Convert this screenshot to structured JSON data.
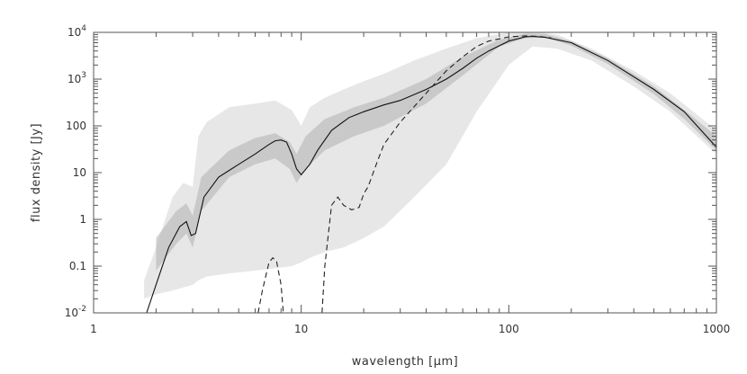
{
  "chart_data": {
    "type": "line",
    "xlabel": "wavelength [μm]",
    "ylabel": "flux density [Jy]",
    "x_scale": "log",
    "y_scale": "log",
    "xlim": [
      1,
      1000
    ],
    "ylim": [
      0.01,
      10000
    ],
    "x_ticks": [
      {
        "value": 1,
        "label": "1"
      },
      {
        "value": 10,
        "label": "10"
      },
      {
        "value": 100,
        "label": "100"
      },
      {
        "value": 1000,
        "label": "1000"
      }
    ],
    "y_ticks": [
      {
        "value": 0.01,
        "base": "10",
        "exp": "-2"
      },
      {
        "value": 0.1,
        "label": "0.1"
      },
      {
        "value": 1,
        "label": "1"
      },
      {
        "value": 10,
        "label": "10"
      },
      {
        "value": 100,
        "label": "100"
      },
      {
        "value": 1000,
        "base": "10",
        "exp": "3"
      },
      {
        "value": 10000,
        "base": "10",
        "exp": "4"
      }
    ],
    "grid": false,
    "colors": {
      "band_outer": "#d4d4d4",
      "band_inner": "#b0b0b0",
      "solid_line": "#111111",
      "dashed_line": "#222222",
      "axes": "#555555"
    },
    "band_outer": {
      "x": [
        1.75,
        2.0,
        2.4,
        2.7,
        3.0,
        3.2,
        3.5,
        4.5,
        6.0,
        7.5,
        9.0,
        10.0,
        11.0,
        13.0,
        16.0,
        20.0,
        25.0,
        35.0,
        50.0,
        70.0,
        100.0,
        130.0,
        170.0,
        250.0,
        400.0,
        600.0,
        1000.0
      ],
      "upper": [
        0.05,
        0.25,
        3.0,
        6.0,
        5.0,
        60.0,
        120.0,
        250.0,
        300.0,
        350.0,
        220.0,
        100.0,
        250.0,
        400.0,
        600.0,
        900.0,
        1300.0,
        2500.0,
        4500.0,
        7500.0,
        10000.0,
        10500.0,
        9000.0,
        4500.0,
        1500.0,
        500.0,
        80.0
      ],
      "lower": [
        0.02,
        0.025,
        0.03,
        0.035,
        0.04,
        0.05,
        0.06,
        0.07,
        0.08,
        0.09,
        0.1,
        0.12,
        0.15,
        0.2,
        0.25,
        0.4,
        0.7,
        3.0,
        15.0,
        200.0,
        2000.0,
        5000.0,
        4500.0,
        2500.0,
        700.0,
        200.0,
        25.0
      ]
    },
    "band_inner": {
      "x": [
        2.0,
        2.5,
        2.8,
        3.0,
        3.3,
        4.5,
        6.0,
        7.5,
        8.8,
        9.5,
        10.5,
        13.0,
        18.0,
        25.0,
        40.0,
        60.0,
        90.0,
        120.0,
        150.0,
        200.0,
        300.0,
        500.0,
        700.0,
        1000.0
      ],
      "upper": [
        0.4,
        1.5,
        2.2,
        1.2,
        8.0,
        30.0,
        55.0,
        70.0,
        45.0,
        25.0,
        60.0,
        140.0,
        250.0,
        400.0,
        1000.0,
        3000.0,
        7000.0,
        9500.0,
        9200.0,
        6500.0,
        2800.0,
        700.0,
        220.0,
        60.0
      ],
      "lower": [
        0.08,
        0.3,
        0.5,
        0.25,
        1.5,
        8.0,
        15.0,
        20.0,
        12.0,
        6.0,
        12.0,
        30.0,
        60.0,
        100.0,
        300.0,
        1200.0,
        5000.0,
        7500.0,
        7800.0,
        5200.0,
        2100.0,
        480.0,
        140.0,
        30.0
      ]
    },
    "series": [
      {
        "style": "solid",
        "x": [
          1.8,
          2.0,
          2.3,
          2.6,
          2.8,
          2.95,
          3.1,
          3.4,
          4.0,
          5.0,
          6.0,
          7.0,
          7.5,
          8.0,
          8.5,
          9.0,
          9.5,
          10.0,
          11.0,
          12.0,
          14.0,
          17.0,
          20.0,
          25.0,
          30.0,
          40.0,
          50.0,
          60.0,
          70.0,
          80.0,
          100.0,
          120.0,
          130.0,
          150.0,
          200.0,
          300.0,
          500.0,
          700.0,
          1000.0
        ],
        "y": [
          0.01,
          0.04,
          0.25,
          0.7,
          0.9,
          0.45,
          0.5,
          3.0,
          8.0,
          15.0,
          25.0,
          40.0,
          48.0,
          50.0,
          45.0,
          25.0,
          12.0,
          9.0,
          15.0,
          30.0,
          80.0,
          150.0,
          200.0,
          280.0,
          350.0,
          600.0,
          1000.0,
          1700.0,
          2800.0,
          4000.0,
          6500.0,
          8000.0,
          8200.0,
          7800.0,
          6000.0,
          2500.0,
          600.0,
          200.0,
          35.0
        ]
      },
      {
        "style": "dashed",
        "segments": [
          {
            "x": [
              6.2,
              6.5,
              7.0,
              7.3,
              7.6,
              8.0,
              8.2
            ],
            "y": [
              0.01,
              0.03,
              0.12,
              0.15,
              0.13,
              0.04,
              0.01
            ]
          },
          {
            "x": [
              12.6,
              13.0,
              14.0,
              15.0,
              16.0,
              17.5,
              19.0,
              20.0,
              21.0,
              23.0,
              25.0,
              30.0,
              40.0,
              50.0,
              60.0,
              70.0,
              80.0,
              100.0,
              120.0,
              140.0,
              160.0
            ],
            "y": [
              0.01,
              0.1,
              2.0,
              3.0,
              2.0,
              1.6,
              1.8,
              3.5,
              5.0,
              15.0,
              40.0,
              120.0,
              500.0,
              1500.0,
              3000.0,
              5000.0,
              6500.0,
              8000.0,
              8400.0,
              8200.0,
              7600.0
            ]
          }
        ]
      }
    ]
  }
}
